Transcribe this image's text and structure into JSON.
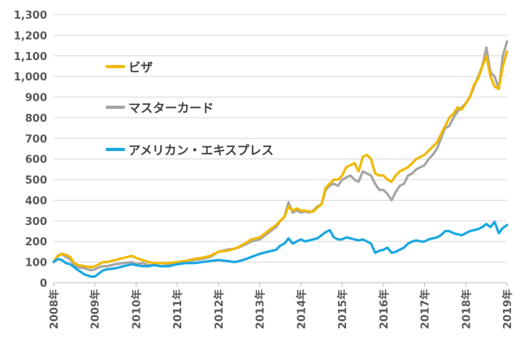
{
  "chart_data": {
    "type": "line",
    "title": "",
    "xlabel": "",
    "ylabel": "",
    "ylim": [
      0,
      1300
    ],
    "yticks": [
      0,
      100,
      200,
      300,
      400,
      500,
      600,
      700,
      800,
      900,
      1000,
      1100,
      1200,
      1300
    ],
    "ytick_labels": [
      "0",
      "100",
      "200",
      "300",
      "400",
      "500",
      "600",
      "700",
      "800",
      "900",
      "1,000",
      "1,100",
      "1,200",
      "1,300"
    ],
    "xlim": [
      2008,
      2019
    ],
    "xticks": [
      2008,
      2009,
      2010,
      2011,
      2012,
      2013,
      2014,
      2015,
      2016,
      2017,
      2018,
      2019
    ],
    "xtick_labels": [
      "2008年",
      "2009年",
      "2010年",
      "2011年",
      "2012年",
      "2013年",
      "2014年",
      "2015年",
      "2016年",
      "2017年",
      "2018年",
      "2019年"
    ],
    "grid": "horizontal",
    "legend_position": "upper-left",
    "series": [
      {
        "name": "マスターカード",
        "color": "#a5a5a5",
        "x": [
          2008.0,
          2008.1,
          2008.2,
          2008.3,
          2008.4,
          2008.5,
          2008.6,
          2008.75,
          2008.9,
          2009.0,
          2009.1,
          2009.2,
          2009.3,
          2009.5,
          2009.7,
          2009.9,
          2010.0,
          2010.15,
          2010.3,
          2010.45,
          2010.6,
          2010.8,
          2011.0,
          2011.2,
          2011.4,
          2011.6,
          2011.8,
          2012.0,
          2012.2,
          2012.4,
          2012.6,
          2012.8,
          2013.0,
          2013.2,
          2013.4,
          2013.5,
          2013.6,
          2013.7,
          2013.8,
          2013.9,
          2014.0,
          2014.1,
          2014.2,
          2014.3,
          2014.4,
          2014.5,
          2014.6,
          2014.7,
          2014.8,
          2014.9,
          2015.0,
          2015.1,
          2015.2,
          2015.3,
          2015.4,
          2015.5,
          2015.6,
          2015.7,
          2015.8,
          2015.9,
          2016.0,
          2016.1,
          2016.2,
          2016.3,
          2016.4,
          2016.5,
          2016.6,
          2016.7,
          2016.8,
          2016.9,
          2017.0,
          2017.1,
          2017.2,
          2017.3,
          2017.4,
          2017.5,
          2017.6,
          2017.7,
          2017.8,
          2017.9,
          2018.0,
          2018.1,
          2018.2,
          2018.3,
          2018.4,
          2018.5,
          2018.6,
          2018.7,
          2018.8,
          2018.9,
          2019.0
        ],
        "values": [
          100,
          130,
          140,
          125,
          115,
          85,
          75,
          70,
          60,
          65,
          75,
          80,
          80,
          90,
          95,
          100,
          90,
          95,
          85,
          85,
          80,
          85,
          95,
          100,
          110,
          115,
          125,
          150,
          160,
          165,
          180,
          200,
          210,
          240,
          270,
          300,
          320,
          390,
          340,
          350,
          340,
          345,
          340,
          350,
          370,
          380,
          450,
          470,
          480,
          470,
          500,
          510,
          520,
          500,
          490,
          540,
          530,
          520,
          480,
          450,
          450,
          430,
          400,
          440,
          470,
          480,
          520,
          530,
          550,
          560,
          570,
          600,
          620,
          650,
          700,
          750,
          760,
          800,
          830,
          850,
          870,
          900,
          950,
          1000,
          1050,
          1140,
          1020,
          1000,
          940,
          1100,
          1170
        ]
      },
      {
        "name": "ビザ",
        "color": "#f0b800",
        "x": [
          2008.0,
          2008.1,
          2008.2,
          2008.3,
          2008.4,
          2008.5,
          2008.6,
          2008.75,
          2008.9,
          2009.0,
          2009.1,
          2009.2,
          2009.3,
          2009.5,
          2009.7,
          2009.9,
          2010.0,
          2010.15,
          2010.3,
          2010.45,
          2010.6,
          2010.8,
          2011.0,
          2011.2,
          2011.4,
          2011.6,
          2011.8,
          2012.0,
          2012.2,
          2012.4,
          2012.6,
          2012.8,
          2013.0,
          2013.2,
          2013.4,
          2013.5,
          2013.6,
          2013.7,
          2013.8,
          2013.9,
          2014.0,
          2014.1,
          2014.2,
          2014.3,
          2014.4,
          2014.5,
          2014.6,
          2014.7,
          2014.8,
          2014.9,
          2015.0,
          2015.1,
          2015.2,
          2015.3,
          2015.4,
          2015.5,
          2015.6,
          2015.7,
          2015.8,
          2015.9,
          2016.0,
          2016.1,
          2016.2,
          2016.3,
          2016.4,
          2016.5,
          2016.6,
          2016.7,
          2016.8,
          2016.9,
          2017.0,
          2017.1,
          2017.2,
          2017.3,
          2017.4,
          2017.5,
          2017.6,
          2017.7,
          2017.8,
          2017.9,
          2018.0,
          2018.1,
          2018.2,
          2018.3,
          2018.4,
          2018.5,
          2018.6,
          2018.7,
          2018.8,
          2018.9,
          2019.0
        ],
        "values": [
          100,
          130,
          140,
          135,
          125,
          95,
          85,
          80,
          75,
          80,
          90,
          100,
          100,
          110,
          120,
          130,
          120,
          110,
          100,
          95,
          95,
          95,
          100,
          105,
          115,
          120,
          130,
          150,
          155,
          165,
          185,
          210,
          220,
          250,
          280,
          300,
          320,
          370,
          350,
          360,
          350,
          350,
          345,
          345,
          365,
          380,
          460,
          480,
          500,
          500,
          520,
          560,
          570,
          580,
          540,
          610,
          620,
          600,
          530,
          520,
          520,
          500,
          490,
          520,
          540,
          550,
          560,
          580,
          600,
          610,
          620,
          640,
          660,
          680,
          720,
          760,
          800,
          820,
          850,
          840,
          870,
          900,
          960,
          990,
          1050,
          1100,
          1000,
          950,
          940,
          1050,
          1120
        ]
      },
      {
        "name": "アメリカン・エキスプレス",
        "color": "#1aa7e0",
        "x": [
          2008.0,
          2008.1,
          2008.2,
          2008.3,
          2008.4,
          2008.5,
          2008.6,
          2008.75,
          2008.9,
          2009.0,
          2009.1,
          2009.2,
          2009.3,
          2009.5,
          2009.7,
          2009.9,
          2010.0,
          2010.15,
          2010.3,
          2010.45,
          2010.6,
          2010.8,
          2011.0,
          2011.2,
          2011.4,
          2011.6,
          2011.8,
          2012.0,
          2012.2,
          2012.4,
          2012.6,
          2012.8,
          2013.0,
          2013.2,
          2013.4,
          2013.5,
          2013.6,
          2013.7,
          2013.8,
          2013.9,
          2014.0,
          2014.1,
          2014.2,
          2014.3,
          2014.4,
          2014.5,
          2014.6,
          2014.7,
          2014.8,
          2014.9,
          2015.0,
          2015.1,
          2015.2,
          2015.3,
          2015.4,
          2015.5,
          2015.6,
          2015.7,
          2015.8,
          2015.9,
          2016.0,
          2016.1,
          2016.2,
          2016.3,
          2016.4,
          2016.5,
          2016.6,
          2016.7,
          2016.8,
          2016.9,
          2017.0,
          2017.1,
          2017.2,
          2017.3,
          2017.4,
          2017.5,
          2017.6,
          2017.7,
          2017.8,
          2017.9,
          2018.0,
          2018.1,
          2018.2,
          2018.3,
          2018.4,
          2018.5,
          2018.6,
          2018.7,
          2018.8,
          2018.9,
          2019.0
        ],
        "values": [
          100,
          115,
          110,
          95,
          90,
          75,
          60,
          40,
          30,
          30,
          45,
          60,
          65,
          70,
          80,
          90,
          85,
          80,
          80,
          85,
          80,
          80,
          90,
          95,
          95,
          100,
          105,
          110,
          105,
          100,
          110,
          125,
          140,
          150,
          160,
          180,
          190,
          215,
          190,
          200,
          210,
          200,
          205,
          210,
          215,
          230,
          245,
          255,
          220,
          210,
          210,
          220,
          215,
          210,
          205,
          210,
          200,
          190,
          145,
          155,
          160,
          170,
          145,
          150,
          160,
          170,
          190,
          200,
          205,
          200,
          200,
          210,
          215,
          220,
          230,
          250,
          250,
          240,
          235,
          230,
          240,
          250,
          255,
          260,
          270,
          285,
          270,
          295,
          240,
          265,
          280
        ]
      }
    ],
    "legend_order": [
      "ビザ",
      "マスターカード",
      "アメリカン・エキスプレス"
    ]
  }
}
